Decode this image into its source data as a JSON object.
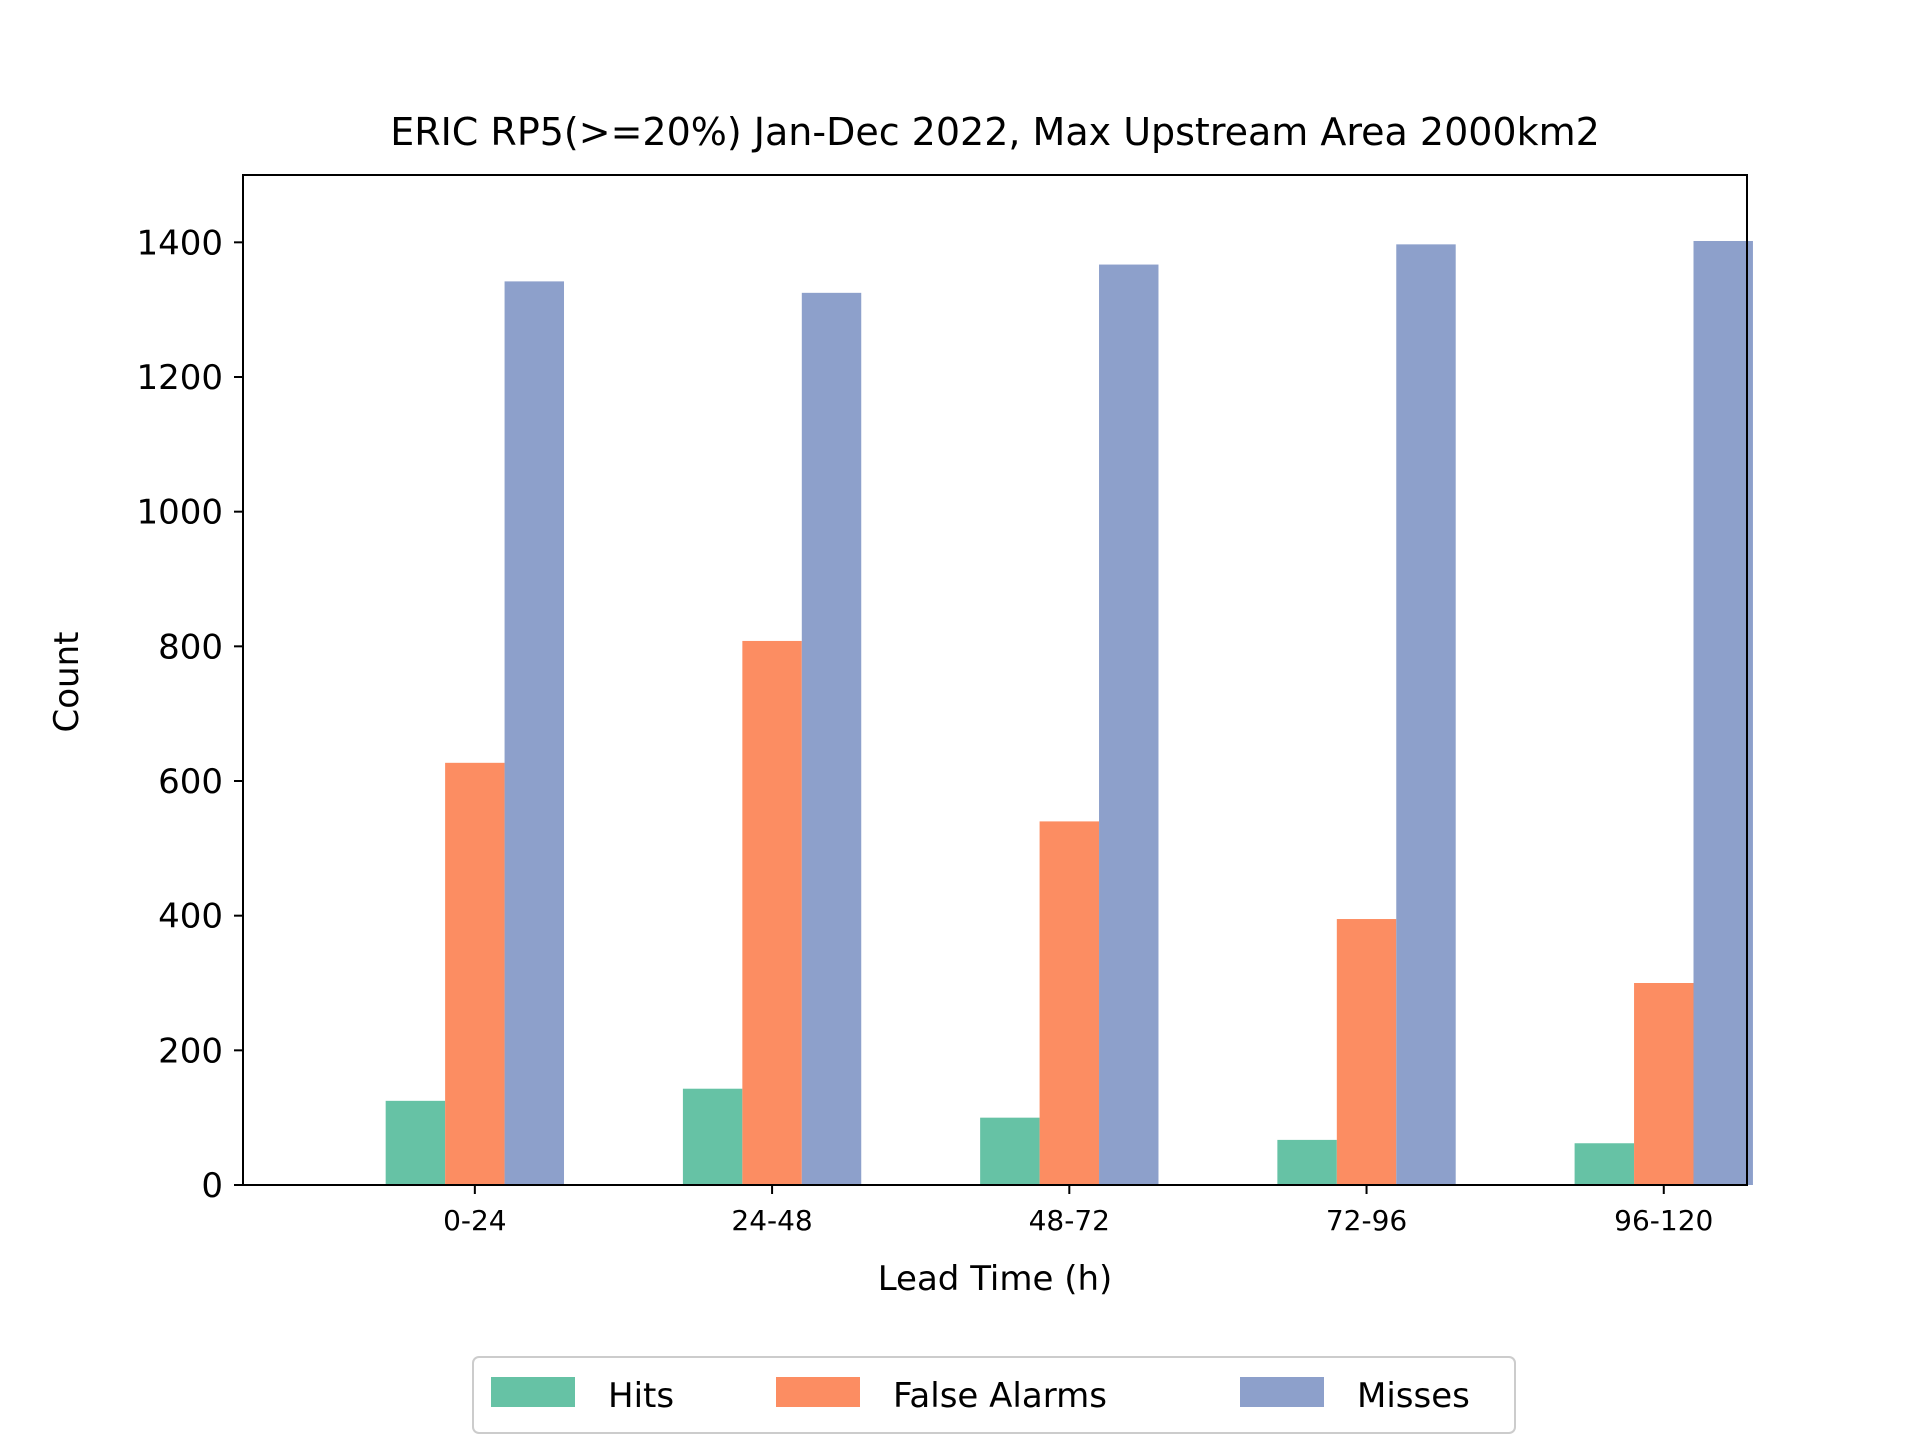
{
  "chart_data": {
    "type": "bar",
    "title": "ERIC RP5(>=20%) Jan-Dec 2022, Max Upstream Area 2000km2",
    "xlabel": "Lead Time (h)",
    "ylabel": "Count",
    "categories": [
      "0-24",
      "24-48",
      "48-72",
      "72-96",
      "96-120"
    ],
    "ylim": [
      0,
      1500
    ],
    "yticks": [
      0,
      200,
      400,
      600,
      800,
      1000,
      1200,
      1400
    ],
    "ytick_labels": [
      "0",
      "200",
      "400",
      "600",
      "800",
      "1000",
      "1200",
      "1400"
    ],
    "series": [
      {
        "name": "Hits",
        "color": "#66c2a5",
        "values": [
          125,
          143,
          100,
          67,
          62
        ]
      },
      {
        "name": "False Alarms",
        "color": "#fc8d62",
        "values": [
          627,
          808,
          540,
          395,
          300
        ]
      },
      {
        "name": "Misses",
        "color": "#8da0cb",
        "values": [
          1342,
          1325,
          1367,
          1397,
          1402
        ]
      }
    ],
    "grid": false,
    "legend_position": "bottom-center"
  }
}
